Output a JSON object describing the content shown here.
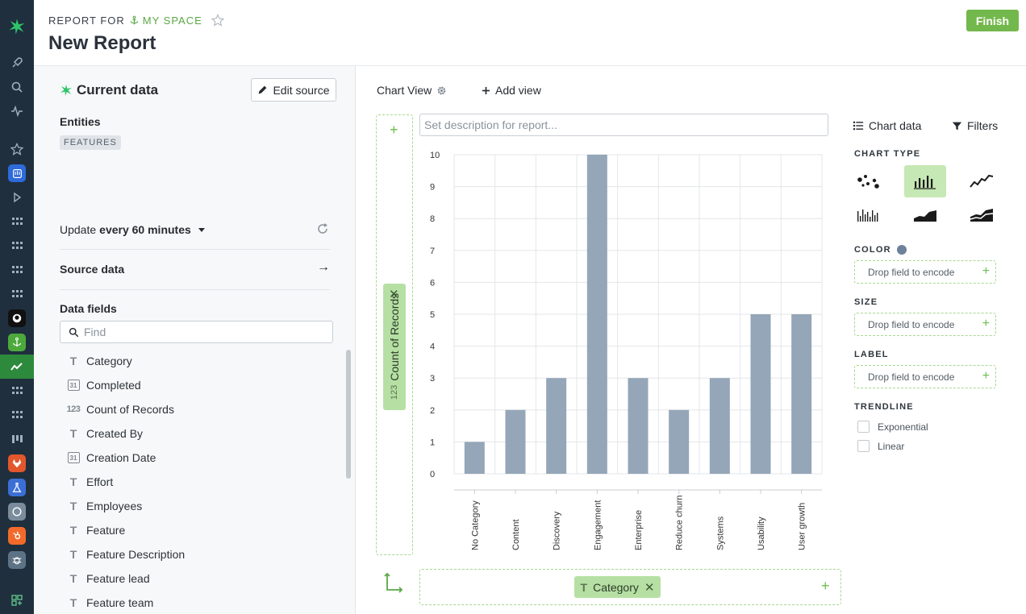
{
  "header": {
    "report_for": "REPORT FOR",
    "space_name": "MY SPACE",
    "title": "New Report",
    "finish_label": "Finish"
  },
  "left_panel": {
    "title": "Current data",
    "edit_source_label": "Edit source",
    "entities_label": "Entities",
    "entity_badge": "FEATURES",
    "update_prefix": "Update",
    "update_value": "every 60 minutes",
    "source_data_label": "Source data",
    "data_fields_label": "Data fields",
    "find_placeholder": "Find",
    "fields": [
      {
        "name": "Category",
        "type": "text",
        "type_glyph": "T"
      },
      {
        "name": "Completed",
        "type": "date",
        "type_glyph": "31"
      },
      {
        "name": "Count of Records",
        "type": "number",
        "type_glyph": "123"
      },
      {
        "name": "Created By",
        "type": "text",
        "type_glyph": "T"
      },
      {
        "name": "Creation Date",
        "type": "date",
        "type_glyph": "31"
      },
      {
        "name": "Effort",
        "type": "text",
        "type_glyph": "T"
      },
      {
        "name": "Employees",
        "type": "text",
        "type_glyph": "T"
      },
      {
        "name": "Feature",
        "type": "text",
        "type_glyph": "T"
      },
      {
        "name": "Feature Description",
        "type": "text",
        "type_glyph": "T"
      },
      {
        "name": "Feature lead",
        "type": "text",
        "type_glyph": "T"
      },
      {
        "name": "Feature team",
        "type": "text",
        "type_glyph": "T"
      }
    ]
  },
  "main": {
    "view_tab_label": "Chart View",
    "add_view_label": "Add view",
    "description_placeholder": "Set description for report...",
    "y_field": {
      "glyph": "123",
      "label": "Count of Records"
    },
    "x_field": {
      "glyph": "T",
      "label": "Category"
    }
  },
  "chart_data": {
    "type": "bar",
    "categories": [
      "No Category",
      "Content",
      "Discovery",
      "Engagement",
      "Enterprise",
      "Reduce churn",
      "Systems",
      "Usability",
      "User growth"
    ],
    "values": [
      1,
      2,
      3,
      10,
      3,
      2,
      3,
      5,
      5
    ],
    "ylim": [
      0,
      10
    ],
    "yticks": [
      0,
      1,
      2,
      3,
      4,
      5,
      6,
      7,
      8,
      9,
      10
    ],
    "grid": true,
    "bar_color": "#94a6b8"
  },
  "right_panel": {
    "chart_data_tab": "Chart data",
    "filters_tab": "Filters",
    "chart_type_label": "CHART TYPE",
    "chart_types": [
      "scatter",
      "bar",
      "line",
      "tick",
      "area",
      "stacked-area"
    ],
    "selected_chart_type": "bar",
    "color_label": "COLOR",
    "color_swatch": "#6d819a",
    "size_label": "SIZE",
    "label_label": "LABEL",
    "drop_text": "Drop field to encode",
    "trendline_label": "TRENDLINE",
    "trendlines": [
      "Exponential",
      "Linear"
    ]
  },
  "colors": {
    "accent": "#73b84c",
    "rail": "#1f2f3d",
    "pill": "#b6e0a3"
  }
}
